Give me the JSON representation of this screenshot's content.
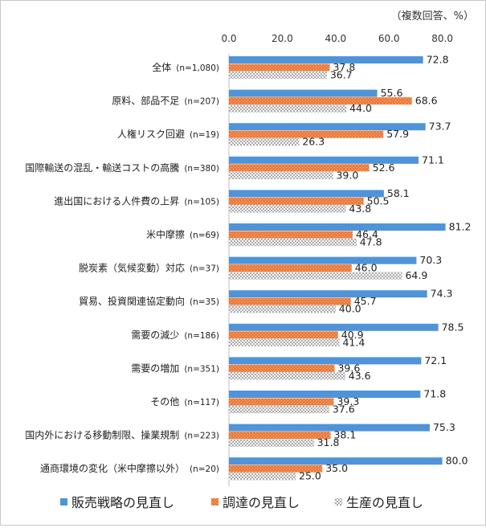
{
  "chart_data": {
    "type": "bar",
    "orientation": "horizontal",
    "unit_note": "（複数回答、%）",
    "x_ticks": [
      "0.0",
      "20.0",
      "40.0",
      "60.0",
      "80.0"
    ],
    "xlim": [
      0,
      80
    ],
    "categories": [
      {
        "label": "全体",
        "n": "(n=1,080)"
      },
      {
        "label": "原料、部品不足",
        "n": "(n=207)"
      },
      {
        "label": "人権リスク回避",
        "n": "(n=19)"
      },
      {
        "label": "国際輸送の混乱・輸送コストの高騰",
        "n": "(n=380)"
      },
      {
        "label": "進出国における人件費の上昇",
        "n": "(n=105)"
      },
      {
        "label": "米中摩擦",
        "n": "(n=69)"
      },
      {
        "label": "脱炭素（気候変動）対応",
        "n": "(n=37)"
      },
      {
        "label": "貿易、投資関連協定動向",
        "n": "(n=35)"
      },
      {
        "label": "需要の減少",
        "n": "(n=186)"
      },
      {
        "label": "需要の増加",
        "n": "(n=351)"
      },
      {
        "label": "その他",
        "n": "(n=117)"
      },
      {
        "label": "国内外における移動制限、操業規制",
        "n": "(n=223)"
      },
      {
        "label": "通商環境の変化（米中摩擦以外）",
        "n": "(n=20)"
      }
    ],
    "series": [
      {
        "name": "販売戦略の見直し",
        "color": "#4f94d9",
        "pattern": "solid",
        "values": [
          72.8,
          55.6,
          73.7,
          71.1,
          58.1,
          81.2,
          70.3,
          74.3,
          78.5,
          72.1,
          71.8,
          75.3,
          80.0
        ],
        "labels": [
          "72.8",
          "55.6",
          "73.7",
          "71.1",
          "58.1",
          "81.2",
          "70.3",
          "74.3",
          "78.5",
          "72.1",
          "71.8",
          "75.3",
          "80.0"
        ]
      },
      {
        "name": "調達の見直し",
        "color": "#ec7a3a",
        "pattern": "dotted",
        "values": [
          37.8,
          68.6,
          57.9,
          52.6,
          50.5,
          46.4,
          46.0,
          45.7,
          40.9,
          39.6,
          39.3,
          38.1,
          35.0
        ],
        "labels": [
          "37.8",
          "68.6",
          "57.9",
          "52.6",
          "50.5",
          "46.4",
          "46.0",
          "45.7",
          "40.9",
          "39.6",
          "39.3",
          "38.1",
          "35.0"
        ]
      },
      {
        "name": "生産の見直し",
        "color": "#a8a8a8",
        "pattern": "checker",
        "values": [
          36.7,
          44.0,
          26.3,
          39.0,
          43.8,
          47.8,
          64.9,
          40.0,
          41.4,
          43.6,
          37.6,
          31.8,
          25.0
        ],
        "labels": [
          "36.7",
          "44.0",
          "26.3",
          "39.0",
          "43.8",
          "47.8",
          "64.9",
          "40.0",
          "41.4",
          "43.6",
          "37.6",
          "31.8",
          "25.0"
        ]
      }
    ],
    "legend_position": "bottom",
    "grid": false
  }
}
